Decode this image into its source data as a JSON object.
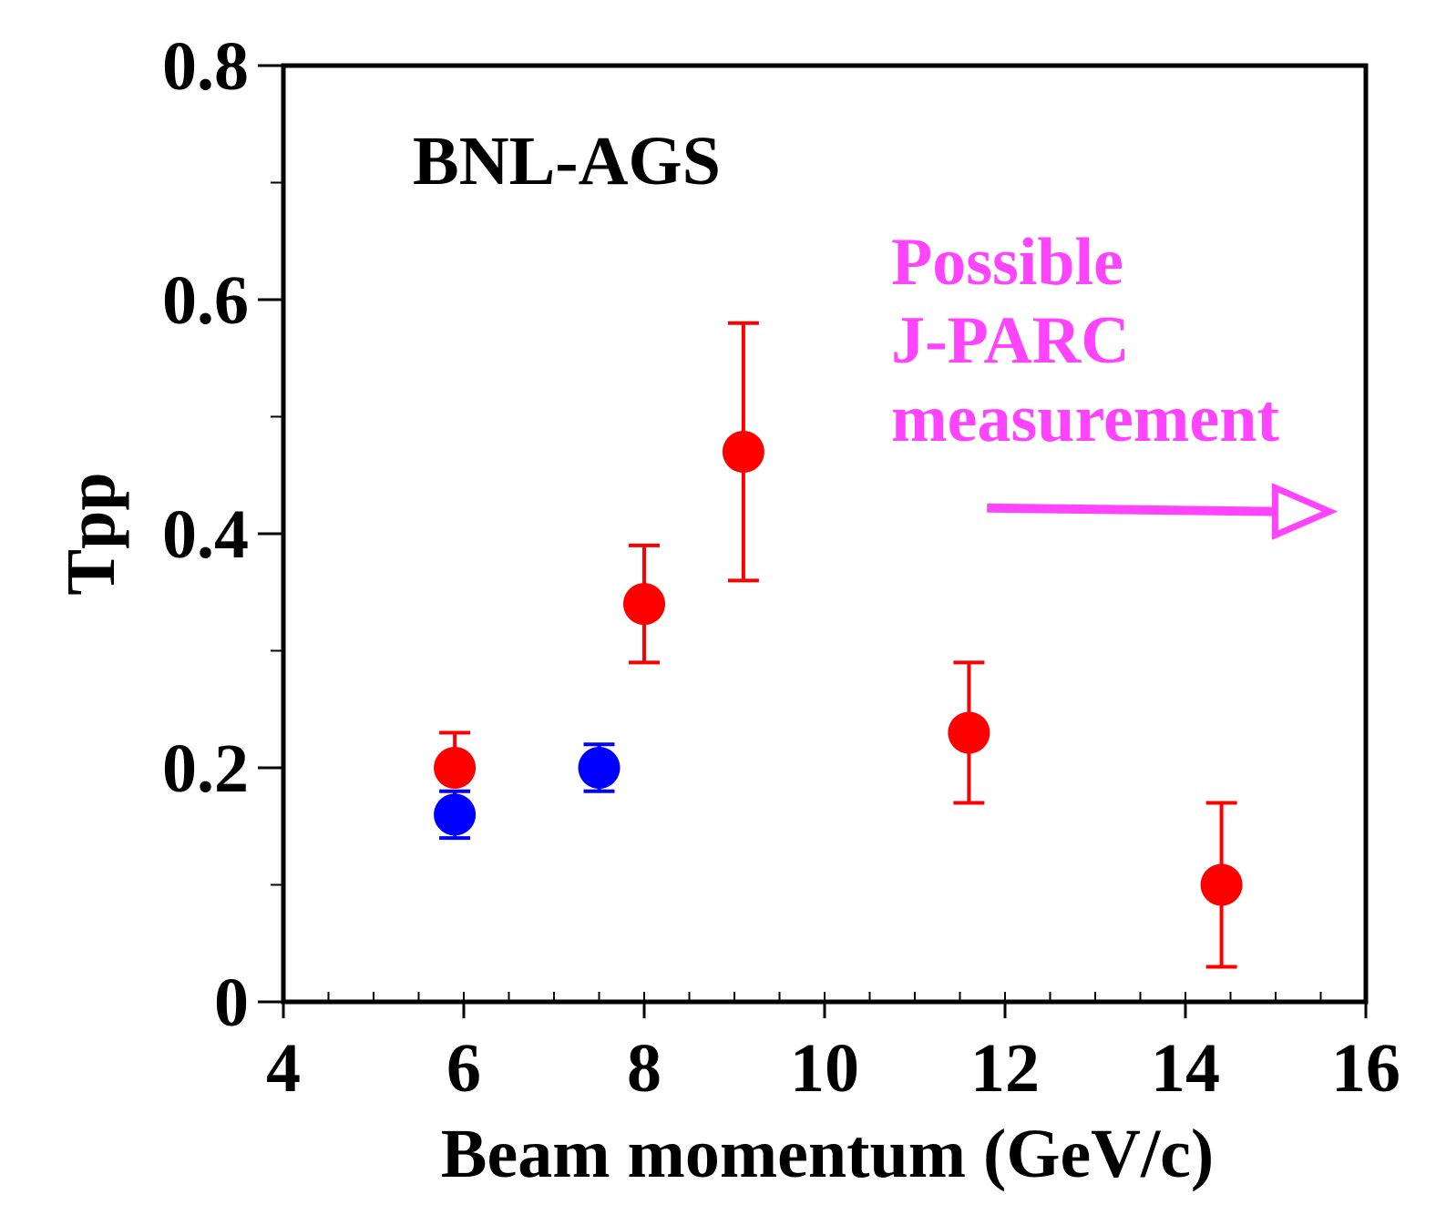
{
  "chart_data": {
    "type": "scatter",
    "title": "",
    "xlabel": "Beam momentum (GeV/c)",
    "ylabel": "Tpp",
    "xlim": [
      4,
      16
    ],
    "ylim": [
      0,
      0.8
    ],
    "x_ticks": [
      4,
      6,
      8,
      10,
      12,
      14,
      16
    ],
    "x_tick_labels": [
      "4",
      "6",
      "8",
      "10",
      "12",
      "14",
      "16"
    ],
    "x_minor_step": 0.5,
    "y_ticks": [
      0,
      0.2,
      0.4,
      0.6,
      0.8
    ],
    "y_tick_labels": [
      "0",
      "0.2",
      "0.4",
      "0.6",
      "0.8"
    ],
    "y_minor_step": 0.1,
    "grid": false,
    "series": [
      {
        "name": "red",
        "color": "#ff0000",
        "points": [
          {
            "x": 5.9,
            "y": 0.2,
            "err_lo": 0.0,
            "err_hi": 0.03
          },
          {
            "x": 8.0,
            "y": 0.34,
            "err_lo": 0.05,
            "err_hi": 0.05
          },
          {
            "x": 9.1,
            "y": 0.47,
            "err_lo": 0.11,
            "err_hi": 0.11
          },
          {
            "x": 11.6,
            "y": 0.23,
            "err_lo": 0.06,
            "err_hi": 0.06
          },
          {
            "x": 14.4,
            "y": 0.1,
            "err_lo": 0.07,
            "err_hi": 0.07
          }
        ]
      },
      {
        "name": "blue",
        "color": "#0000ff",
        "points": [
          {
            "x": 5.9,
            "y": 0.16,
            "err_lo": 0.02,
            "err_hi": 0.02
          },
          {
            "x": 7.5,
            "y": 0.2,
            "err_lo": 0.02,
            "err_hi": 0.02
          }
        ]
      }
    ],
    "annotations": {
      "experiment_label": "BNL-AGS",
      "jparc_lines": [
        "Possible",
        "J-PARC",
        "measurement"
      ],
      "jparc_color": "#ff44ff",
      "arrow": {
        "x_start": 11.8,
        "x_end": 15.6,
        "y_start": 0.422,
        "y_end": 0.419,
        "color": "#ff44ff"
      }
    }
  }
}
